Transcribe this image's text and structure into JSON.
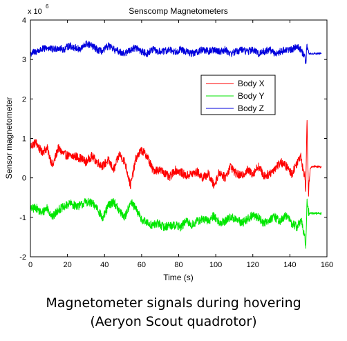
{
  "caption": {
    "line1": "Magnetometer signals during hovering",
    "line2": "(Aeryon Scout quadrotor)"
  },
  "chart_data": {
    "type": "line",
    "title": "Senscomp Magnetometers",
    "xlabel": "Time (s)",
    "ylabel": "Sensor magnetometer",
    "y_multiplier_label": "x 10",
    "y_multiplier_exponent": "6",
    "xlim": [
      0,
      160
    ],
    "ylim": [
      -2000000,
      4000000
    ],
    "xticks": [
      0,
      20,
      40,
      60,
      80,
      100,
      120,
      140,
      160
    ],
    "xtick_labels": [
      "0",
      "20",
      "40",
      "60",
      "80",
      "100",
      "120",
      "140",
      "160"
    ],
    "yticks": [
      -2000000,
      -1000000,
      0,
      1000000,
      2000000,
      3000000,
      4000000
    ],
    "ytick_labels": [
      "-2",
      "-1",
      "0",
      "1",
      "2",
      "3",
      "4"
    ],
    "grid": false,
    "legend_position": "upper-right",
    "noise_note": "traces are dense noisy sensor signals; values are approximate envelope means",
    "series": [
      {
        "name": "Body X",
        "color": "#ff0000",
        "noise_amplitude": 110000,
        "x": [
          0,
          3,
          6,
          9,
          12,
          15,
          18,
          21,
          24,
          27,
          30,
          33,
          36,
          39,
          42,
          45,
          48,
          51,
          54,
          57,
          60,
          63,
          66,
          69,
          72,
          75,
          78,
          81,
          84,
          87,
          90,
          93,
          96,
          99,
          102,
          105,
          108,
          111,
          114,
          117,
          120,
          123,
          126,
          129,
          132,
          135,
          138,
          141,
          144,
          146,
          147,
          148,
          148.6,
          149.2,
          150,
          151,
          153,
          155,
          157
        ],
        "y": [
          800000,
          900000,
          650000,
          750000,
          300000,
          750000,
          600000,
          550000,
          550000,
          500000,
          400000,
          550000,
          400000,
          300000,
          450000,
          200000,
          600000,
          400000,
          -200000,
          500000,
          700000,
          550000,
          200000,
          200000,
          150000,
          0,
          200000,
          150000,
          50000,
          100000,
          150000,
          0,
          100000,
          -200000,
          150000,
          0,
          300000,
          100000,
          50000,
          200000,
          100000,
          300000,
          50000,
          100000,
          250000,
          400000,
          300000,
          100000,
          400000,
          600000,
          200000,
          100000,
          -300000,
          1500000,
          -400000,
          250000,
          300000,
          280000,
          280000
        ]
      },
      {
        "name": "Body Y",
        "color": "#00e600",
        "noise_amplitude": 110000,
        "x": [
          0,
          3,
          6,
          9,
          12,
          15,
          18,
          21,
          24,
          27,
          30,
          33,
          36,
          39,
          42,
          45,
          48,
          51,
          54,
          57,
          60,
          63,
          66,
          69,
          72,
          75,
          78,
          81,
          84,
          87,
          90,
          93,
          96,
          99,
          102,
          105,
          108,
          111,
          114,
          117,
          120,
          123,
          126,
          129,
          132,
          135,
          138,
          141,
          144,
          146,
          147,
          148,
          148.6,
          149.2,
          150,
          151,
          153,
          155,
          157
        ],
        "y": [
          -800000,
          -750000,
          -900000,
          -750000,
          -1000000,
          -800000,
          -750000,
          -650000,
          -700000,
          -700000,
          -600000,
          -650000,
          -750000,
          -1050000,
          -700000,
          -600000,
          -850000,
          -1000000,
          -600000,
          -800000,
          -1050000,
          -1150000,
          -1200000,
          -1150000,
          -1250000,
          -1200000,
          -1200000,
          -1250000,
          -1100000,
          -1200000,
          -1100000,
          -1050000,
          -1100000,
          -950000,
          -1150000,
          -1100000,
          -1000000,
          -1050000,
          -1150000,
          -1050000,
          -950000,
          -1000000,
          -1150000,
          -1050000,
          -1000000,
          -1100000,
          -950000,
          -1150000,
          -1250000,
          -1050000,
          -1300000,
          -1500000,
          -1700000,
          -600000,
          -850000,
          -900000,
          -900000,
          -900000,
          -900000
        ]
      },
      {
        "name": "Body Z",
        "color": "#0000dd",
        "noise_amplitude": 90000,
        "x": [
          0,
          3,
          6,
          9,
          12,
          15,
          18,
          21,
          24,
          27,
          30,
          33,
          36,
          39,
          42,
          45,
          48,
          51,
          54,
          57,
          60,
          63,
          66,
          69,
          72,
          75,
          78,
          81,
          84,
          87,
          90,
          93,
          96,
          99,
          102,
          105,
          108,
          111,
          114,
          117,
          120,
          123,
          126,
          129,
          132,
          135,
          138,
          141,
          144,
          146,
          147,
          148,
          148.6,
          149.2,
          150,
          151,
          153,
          155,
          157
        ],
        "y": [
          3150000,
          3200000,
          3250000,
          3300000,
          3250000,
          3300000,
          3250000,
          3350000,
          3300000,
          3250000,
          3400000,
          3350000,
          3250000,
          3200000,
          3350000,
          3250000,
          3200000,
          3150000,
          3250000,
          3300000,
          3200000,
          3150000,
          3250000,
          3200000,
          3200000,
          3250000,
          3200000,
          3250000,
          3200000,
          3150000,
          3200000,
          3250000,
          3200000,
          3250000,
          3200000,
          3250000,
          3150000,
          3200000,
          3250000,
          3200000,
          3250000,
          3150000,
          3200000,
          3250000,
          3150000,
          3200000,
          3250000,
          3250000,
          3350000,
          3250000,
          3150000,
          3050000,
          2900000,
          3350000,
          3150000,
          3150000,
          3150000,
          3150000,
          3150000
        ]
      }
    ]
  }
}
